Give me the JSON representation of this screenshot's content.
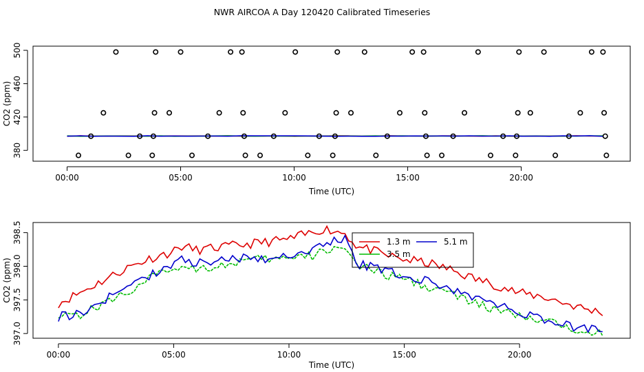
{
  "title": "NWR AIRCOA A  Day 120420  Calibrated Timeseries",
  "chart_data": [
    {
      "type": "scatter",
      "xlabel": "Time (UTC)",
      "ylabel": "CO2 (ppm)",
      "xlim": [
        -1.5,
        24.8
      ],
      "ylim": [
        367,
        505
      ],
      "xticks": [
        0,
        5,
        10,
        15,
        20
      ],
      "xtick_labels": [
        "00:00",
        "05:00",
        "10:00",
        "15:00",
        "20:00"
      ],
      "yticks": [
        380,
        420,
        460,
        500
      ],
      "ytick_labels": [
        "380",
        "420",
        "460",
        "500"
      ],
      "points": {
        "x": [
          0.5,
          1.05,
          1.6,
          2.15,
          2.7,
          3.2,
          3.75,
          3.8,
          3.85,
          3.9,
          4.5,
          5.0,
          5.5,
          6.2,
          6.7,
          7.2,
          7.7,
          7.75,
          7.8,
          7.85,
          8.5,
          9.1,
          9.6,
          10.05,
          10.6,
          11.1,
          11.7,
          11.8,
          11.85,
          11.9,
          12.5,
          13.1,
          13.6,
          14.1,
          14.65,
          15.2,
          15.7,
          15.75,
          15.8,
          15.85,
          16.5,
          17.0,
          17.5,
          18.1,
          18.65,
          19.2,
          19.75,
          19.8,
          19.85,
          19.9,
          20.4,
          21.0,
          21.5,
          22.1,
          22.6,
          23.1,
          23.6,
          23.65,
          23.7,
          23.75
        ],
        "y": [
          374,
          397,
          425,
          498,
          374,
          397,
          374,
          397,
          425,
          498,
          425,
          498,
          374,
          397,
          425,
          498,
          498,
          425,
          397,
          374,
          374,
          397,
          425,
          498,
          374,
          397,
          374,
          397,
          425,
          498,
          425,
          498,
          374,
          397,
          425,
          498,
          498,
          425,
          397,
          374,
          374,
          397,
          425,
          498,
          374,
          397,
          374,
          397,
          425,
          498,
          425,
          498,
          374,
          397,
          425,
          498,
          498,
          425,
          397,
          374
        ]
      },
      "series": [
        {
          "name": "1.3 m",
          "color": "#dd0000",
          "x": [
            0,
            23.6
          ],
          "values": [
            397.2,
            397.2
          ]
        },
        {
          "name": "3.5 m",
          "color": "#00bb00",
          "x": [
            0,
            23.6
          ],
          "values": [
            397.2,
            397.2
          ]
        },
        {
          "name": "5.1 m",
          "color": "#0000cc",
          "x": [
            0,
            23.6
          ],
          "values": [
            397.2,
            397.2
          ]
        }
      ]
    },
    {
      "type": "line",
      "xlabel": "Time (UTC)",
      "ylabel": "CO2 (ppm)",
      "xlim": [
        -1.1,
        24.8
      ],
      "ylim": [
        396.93,
        398.65
      ],
      "xticks": [
        0,
        5,
        10,
        15,
        20
      ],
      "xtick_labels": [
        "00:00",
        "05:00",
        "10:00",
        "15:00",
        "20:00"
      ],
      "yticks": [
        397.0,
        397.5,
        398.0,
        398.5
      ],
      "ytick_labels": [
        "397.0",
        "397.5",
        "398.0",
        "398.5"
      ],
      "x": [
        0,
        1,
        2,
        3,
        4,
        5,
        5.3,
        6,
        7,
        8,
        9,
        10,
        11,
        11.5,
        12,
        12.4,
        13,
        13.5,
        14,
        15,
        16,
        17,
        18,
        19,
        20,
        21,
        22,
        23,
        23.6
      ],
      "series": [
        {
          "name": "1.3 m",
          "color": "#dd0000",
          "values": [
            397.45,
            397.62,
            397.8,
            397.98,
            398.12,
            398.22,
            398.3,
            398.24,
            398.28,
            398.32,
            398.36,
            398.4,
            398.5,
            398.56,
            398.52,
            398.5,
            398.28,
            398.25,
            398.18,
            398.1,
            398.05,
            397.95,
            397.82,
            397.72,
            397.6,
            397.55,
            397.45,
            397.35,
            397.32
          ]
        },
        {
          "name": "3.5 m",
          "color": "#00bb00",
          "values": [
            397.3,
            397.28,
            397.45,
            397.62,
            397.82,
            397.98,
            398.0,
            397.98,
            398.0,
            398.08,
            398.1,
            398.12,
            398.15,
            398.22,
            398.28,
            398.32,
            397.98,
            397.95,
            397.88,
            397.82,
            397.7,
            397.6,
            397.45,
            397.35,
            397.25,
            397.18,
            397.1,
            397.05,
            397.02
          ]
        },
        {
          "name": "5.1 m",
          "color": "#0000cc",
          "values": [
            397.25,
            397.3,
            397.5,
            397.68,
            397.88,
            398.02,
            398.1,
            398.05,
            398.08,
            398.12,
            398.12,
            398.15,
            398.25,
            398.32,
            398.38,
            398.42,
            398.02,
            398.0,
            397.95,
            397.85,
            397.78,
            397.65,
            397.55,
            397.42,
            397.32,
            397.22,
            397.12,
            397.08,
            397.08
          ]
        }
      ],
      "legend": {
        "position": "top-center",
        "entries": [
          "1.3 m",
          "3.5 m",
          "5.1 m"
        ]
      }
    }
  ]
}
